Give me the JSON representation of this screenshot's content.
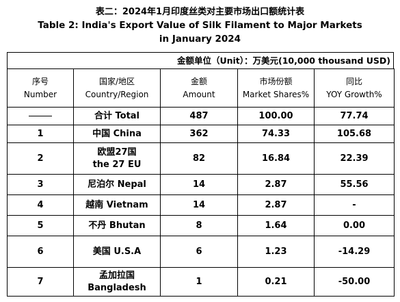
{
  "title": {
    "cn": "表二：2024年1月印度丝类对主要市场出口额统计表",
    "en_line1": "Table 2: India's Export Value of Silk Filament to Major Markets",
    "en_line2": "in January 2024"
  },
  "unit": "金额单位（Unit）：万美元(10,000 thousand USD)",
  "headers": [
    {
      "cn": "序号",
      "en": "Number"
    },
    {
      "cn": "国家/地区",
      "en": "Country/Region"
    },
    {
      "cn": "金额",
      "en": "Amount"
    },
    {
      "cn": "市场份额",
      "en": "Market Shares%"
    },
    {
      "cn": "同比",
      "en": "YOY Growth%"
    }
  ],
  "total": {
    "number": "——",
    "region": "合计 Total",
    "amount": "487",
    "share": "100.00",
    "growth": "77.74"
  },
  "rows": [
    {
      "number": "1",
      "region": "中国 China",
      "amount": "362",
      "share": "74.33",
      "growth": "105.68"
    },
    {
      "number": "2",
      "region_cn": "欧盟27国",
      "region_en": "the 27 EU",
      "amount": "82",
      "share": "16.84",
      "growth": "22.39"
    },
    {
      "number": "3",
      "region": "尼泊尔 Nepal",
      "amount": "14",
      "share": "2.87",
      "growth": "55.56"
    },
    {
      "number": "4",
      "region": "越南 Vietnam",
      "amount": "14",
      "share": "2.87",
      "growth": "-"
    },
    {
      "number": "5",
      "region": "不丹 Bhutan",
      "amount": "8",
      "share": "1.64",
      "growth": "0.00"
    },
    {
      "number": "6",
      "region": "美国 U.S.A",
      "amount": "6",
      "share": "1.23",
      "growth": "-14.29"
    },
    {
      "number": "7",
      "region_cn": "孟加拉国",
      "region_en": "Bangladesh",
      "amount": "1",
      "share": "0.21",
      "growth": "-50.00"
    }
  ]
}
